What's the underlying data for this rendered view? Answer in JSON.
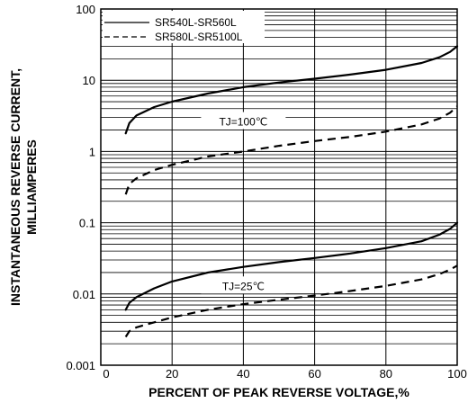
{
  "chart_data": {
    "type": "line",
    "xlabel": "PERCENT OF PEAK REVERSE VOLTAGE,%",
    "ylabel_lines": [
      "INSTANTANEOUS REVERSE CURRENT,",
      "MILLIAMPERES"
    ],
    "x_scale": "linear",
    "y_scale": "log",
    "xlim": [
      0,
      100
    ],
    "ylim": [
      0.001,
      100
    ],
    "x_ticks": [
      0,
      20,
      40,
      60,
      80,
      100
    ],
    "y_tick_labels": [
      "0.001",
      "0.01",
      "0.1",
      "1",
      "10",
      "100"
    ],
    "grid": "major x gridlines, minor and major log y gridlines",
    "legend_position": "top-right",
    "legend": [
      {
        "name": "SR540L-SR560L",
        "style": "solid"
      },
      {
        "name": "SR580L-SR5100L",
        "style": "dashed"
      }
    ],
    "annotations": [
      "TJ=100℃",
      "TJ=25℃"
    ],
    "series": [
      {
        "name": "SR540L-SR560L",
        "condition": "TJ=100℃",
        "style": "solid",
        "x": [
          7,
          8,
          10,
          15,
          20,
          30,
          40,
          50,
          60,
          70,
          80,
          90,
          95,
          98,
          100
        ],
        "y": [
          1.8,
          2.5,
          3.2,
          4.2,
          5.0,
          6.5,
          8.0,
          9.3,
          10.5,
          12.0,
          14.0,
          17.5,
          21,
          25,
          30
        ]
      },
      {
        "name": "SR580L-SR5100L",
        "condition": "TJ=100℃",
        "style": "dashed",
        "x": [
          7,
          8,
          10,
          15,
          20,
          30,
          40,
          50,
          60,
          70,
          80,
          90,
          95,
          98,
          100
        ],
        "y": [
          0.25,
          0.35,
          0.42,
          0.55,
          0.65,
          0.85,
          1.0,
          1.2,
          1.4,
          1.6,
          1.9,
          2.4,
          2.9,
          3.5,
          4.3
        ]
      },
      {
        "name": "SR540L-SR560L",
        "condition": "TJ=25℃",
        "style": "solid",
        "x": [
          7,
          8,
          10,
          15,
          20,
          30,
          40,
          50,
          60,
          70,
          80,
          90,
          95,
          98,
          100
        ],
        "y": [
          0.006,
          0.0075,
          0.009,
          0.012,
          0.015,
          0.02,
          0.024,
          0.028,
          0.032,
          0.037,
          0.044,
          0.055,
          0.068,
          0.082,
          0.1
        ]
      },
      {
        "name": "SR580L-SR5100L",
        "condition": "TJ=25℃",
        "style": "dashed",
        "x": [
          7,
          8,
          10,
          15,
          20,
          30,
          40,
          50,
          60,
          70,
          80,
          90,
          95,
          98,
          100
        ],
        "y": [
          0.0025,
          0.003,
          0.0034,
          0.004,
          0.0047,
          0.006,
          0.0072,
          0.0083,
          0.0095,
          0.011,
          0.013,
          0.016,
          0.019,
          0.022,
          0.025
        ]
      }
    ]
  }
}
